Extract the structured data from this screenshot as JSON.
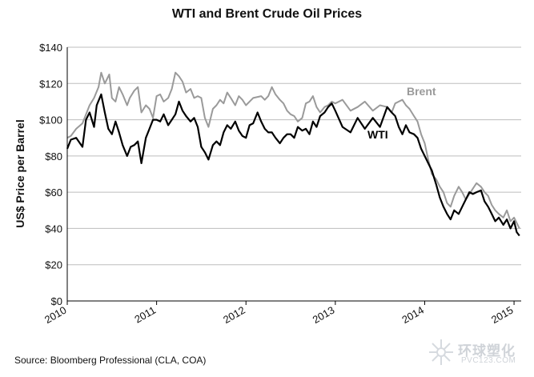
{
  "chart_data": {
    "type": "line",
    "title": "WTI and Brent Crude Oil Prices",
    "ylabel": "US$ Price per Barrel",
    "xlabel": "",
    "xlim": [
      2010,
      2015.08
    ],
    "ylim": [
      0,
      140
    ],
    "y_ticks": [
      0,
      20,
      40,
      60,
      80,
      100,
      120,
      140
    ],
    "y_tick_labels": [
      "$0",
      "$20",
      "$40",
      "$60",
      "$80",
      "$100",
      "$120",
      "$140"
    ],
    "x_ticks": [
      2010,
      2011,
      2012,
      2013,
      2014,
      2015
    ],
    "x_tick_labels": [
      "2010",
      "2011",
      "2012",
      "2013",
      "2014",
      "2015"
    ],
    "grid": "horizontal",
    "series": [
      {
        "name": "Brent",
        "color": "#9a9a9a",
        "x": [
          2010.0,
          2010.04,
          2010.1,
          2010.17,
          2010.25,
          2010.3,
          2010.35,
          2010.38,
          2010.42,
          2010.47,
          2010.5,
          2010.54,
          2010.58,
          2010.62,
          2010.67,
          2010.7,
          2010.75,
          2010.79,
          2010.83,
          2010.88,
          2010.92,
          2010.96,
          2011.0,
          2011.04,
          2011.08,
          2011.13,
          2011.17,
          2011.21,
          2011.25,
          2011.29,
          2011.33,
          2011.38,
          2011.42,
          2011.46,
          2011.5,
          2011.54,
          2011.58,
          2011.63,
          2011.67,
          2011.71,
          2011.75,
          2011.79,
          2011.83,
          2011.88,
          2011.92,
          2011.96,
          2012.0,
          2012.08,
          2012.17,
          2012.21,
          2012.25,
          2012.29,
          2012.33,
          2012.38,
          2012.42,
          2012.46,
          2012.5,
          2012.54,
          2012.58,
          2012.63,
          2012.67,
          2012.71,
          2012.75,
          2012.79,
          2012.83,
          2012.88,
          2012.92,
          2012.96,
          2013.0,
          2013.08,
          2013.17,
          2013.25,
          2013.33,
          2013.42,
          2013.5,
          2013.58,
          2013.63,
          2013.67,
          2013.71,
          2013.75,
          2013.79,
          2013.83,
          2013.88,
          2013.92,
          2013.96,
          2014.0,
          2014.04,
          2014.08,
          2014.13,
          2014.17,
          2014.21,
          2014.25,
          2014.29,
          2014.33,
          2014.38,
          2014.42,
          2014.46,
          2014.5,
          2014.54,
          2014.58,
          2014.63,
          2014.67,
          2014.71,
          2014.75,
          2014.79,
          2014.83,
          2014.88,
          2014.92,
          2014.96,
          2015.0,
          2015.03,
          2015.06
        ],
        "values": [
          90,
          91,
          95,
          98,
          108,
          112,
          118,
          126,
          120,
          125,
          112,
          110,
          118,
          114,
          108,
          112,
          116,
          118,
          104,
          108,
          106,
          101,
          113,
          114,
          110,
          112,
          117,
          126,
          124,
          121,
          115,
          117,
          112,
          113,
          112,
          101,
          96,
          106,
          108,
          111,
          109,
          115,
          112,
          108,
          113,
          111,
          108,
          112,
          113,
          111,
          113,
          118,
          114,
          111,
          109,
          105,
          103,
          102,
          99,
          101,
          109,
          110,
          113,
          107,
          104,
          107,
          108,
          110,
          109,
          111,
          105,
          107,
          110,
          105,
          108,
          107,
          104,
          109,
          110,
          111,
          108,
          106,
          102,
          99,
          92,
          87,
          78,
          70,
          67,
          63,
          60,
          54,
          52,
          58,
          63,
          60,
          56,
          59,
          62,
          65,
          63,
          60,
          58,
          53,
          50,
          48,
          46,
          50,
          44,
          46,
          43,
          40
        ]
      },
      {
        "name": "WTI",
        "color": "#000000",
        "x": [
          2010.0,
          2010.04,
          2010.1,
          2010.17,
          2010.21,
          2010.25,
          2010.3,
          2010.33,
          2010.38,
          2010.42,
          2010.46,
          2010.5,
          2010.54,
          2010.58,
          2010.62,
          2010.67,
          2010.71,
          2010.75,
          2010.79,
          2010.83,
          2010.88,
          2010.92,
          2010.96,
          2011.0,
          2011.04,
          2011.08,
          2011.13,
          2011.17,
          2011.21,
          2011.25,
          2011.29,
          2011.33,
          2011.38,
          2011.42,
          2011.46,
          2011.5,
          2011.54,
          2011.58,
          2011.63,
          2011.67,
          2011.71,
          2011.75,
          2011.79,
          2011.83,
          2011.88,
          2011.92,
          2011.96,
          2012.0,
          2012.04,
          2012.08,
          2012.13,
          2012.17,
          2012.21,
          2012.25,
          2012.29,
          2012.33,
          2012.38,
          2012.42,
          2012.46,
          2012.5,
          2012.54,
          2012.58,
          2012.63,
          2012.67,
          2012.71,
          2012.75,
          2012.79,
          2012.83,
          2012.88,
          2012.92,
          2012.96,
          2013.0,
          2013.08,
          2013.17,
          2013.25,
          2013.33,
          2013.42,
          2013.5,
          2013.58,
          2013.63,
          2013.67,
          2013.71,
          2013.75,
          2013.79,
          2013.83,
          2013.88,
          2013.92,
          2013.96,
          2014.0,
          2014.04,
          2014.08,
          2014.13,
          2014.17,
          2014.21,
          2014.25,
          2014.29,
          2014.33,
          2014.38,
          2014.42,
          2014.46,
          2014.5,
          2014.54,
          2014.58,
          2014.63,
          2014.67,
          2014.71,
          2014.75,
          2014.79,
          2014.83,
          2014.88,
          2014.92,
          2014.96,
          2015.0,
          2015.03,
          2015.06
        ],
        "values": [
          84,
          89,
          90,
          85,
          100,
          104,
          96,
          108,
          114,
          104,
          95,
          92,
          99,
          93,
          86,
          80,
          85,
          86,
          88,
          76,
          90,
          95,
          100,
          100,
          99,
          103,
          97,
          100,
          103,
          110,
          105,
          102,
          99,
          101,
          96,
          85,
          82,
          78,
          86,
          88,
          86,
          93,
          97,
          95,
          99,
          94,
          91,
          90,
          97,
          98,
          104,
          99,
          95,
          93,
          93,
          90,
          87,
          90,
          92,
          92,
          90,
          96,
          94,
          95,
          92,
          99,
          96,
          102,
          104,
          107,
          109,
          105,
          96,
          93,
          101,
          95,
          101,
          96,
          107,
          104,
          102,
          96,
          92,
          97,
          93,
          92,
          90,
          84,
          80,
          76,
          72,
          64,
          57,
          52,
          48,
          45,
          50,
          48,
          52,
          56,
          60,
          59,
          60,
          61,
          55,
          52,
          48,
          44,
          46,
          42,
          45,
          40,
          44,
          38,
          36
        ]
      }
    ],
    "series_labels": [
      "Brent",
      "WTI"
    ]
  },
  "source": "Source: Bloomberg Professional (CLA, COA)",
  "watermark": {
    "chinese": "环球塑化",
    "url": "PVC123.COM"
  }
}
